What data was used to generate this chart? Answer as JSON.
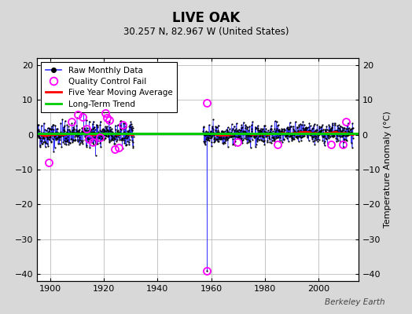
{
  "title": "LIVE OAK",
  "subtitle": "30.257 N, 82.967 W (United States)",
  "ylabel": "Temperature Anomaly (°C)",
  "watermark": "Berkeley Earth",
  "xlim": [
    1895,
    2015
  ],
  "ylim": [
    -42,
    22
  ],
  "yticks": [
    -40,
    -30,
    -20,
    -10,
    0,
    10,
    20
  ],
  "xticks": [
    1900,
    1920,
    1940,
    1960,
    1980,
    2000
  ],
  "background_color": "#d8d8d8",
  "plot_bg_color": "#ffffff",
  "grid_color": "#bbbbbb",
  "raw_color": "#3333ff",
  "raw_dot_color": "#000000",
  "qc_fail_color": "#ff00ff",
  "moving_avg_color": "#ff0000",
  "trend_color": "#00cc00",
  "seed": 42,
  "start_year": 1895,
  "end_year": 2013,
  "gap_start": 1931,
  "gap_end": 1957,
  "early_std": 1.8,
  "late_std": 1.4,
  "qc_fail_early": [
    [
      1899.5,
      -8.0
    ],
    [
      1908.0,
      3.8
    ],
    [
      1910.3,
      5.8
    ],
    [
      1912.0,
      5.2
    ],
    [
      1913.4,
      1.8
    ],
    [
      1914.2,
      -1.2
    ],
    [
      1915.8,
      -2.0
    ],
    [
      1918.3,
      -0.8
    ],
    [
      1920.6,
      6.2
    ],
    [
      1921.2,
      4.8
    ],
    [
      1922.1,
      4.2
    ],
    [
      1924.1,
      -4.2
    ],
    [
      1925.6,
      -3.8
    ],
    [
      1927.1,
      2.8
    ]
  ],
  "qc_fail_late": [
    [
      1958.3,
      9.2
    ],
    [
      1958.5,
      -39.0
    ],
    [
      1969.8,
      -2.2
    ],
    [
      1984.9,
      -2.8
    ],
    [
      2004.8,
      -2.8
    ],
    [
      2009.1,
      -2.8
    ],
    [
      2010.2,
      3.8
    ]
  ],
  "trend_y": [
    0.3,
    0.3
  ],
  "legend_loc": "upper left"
}
